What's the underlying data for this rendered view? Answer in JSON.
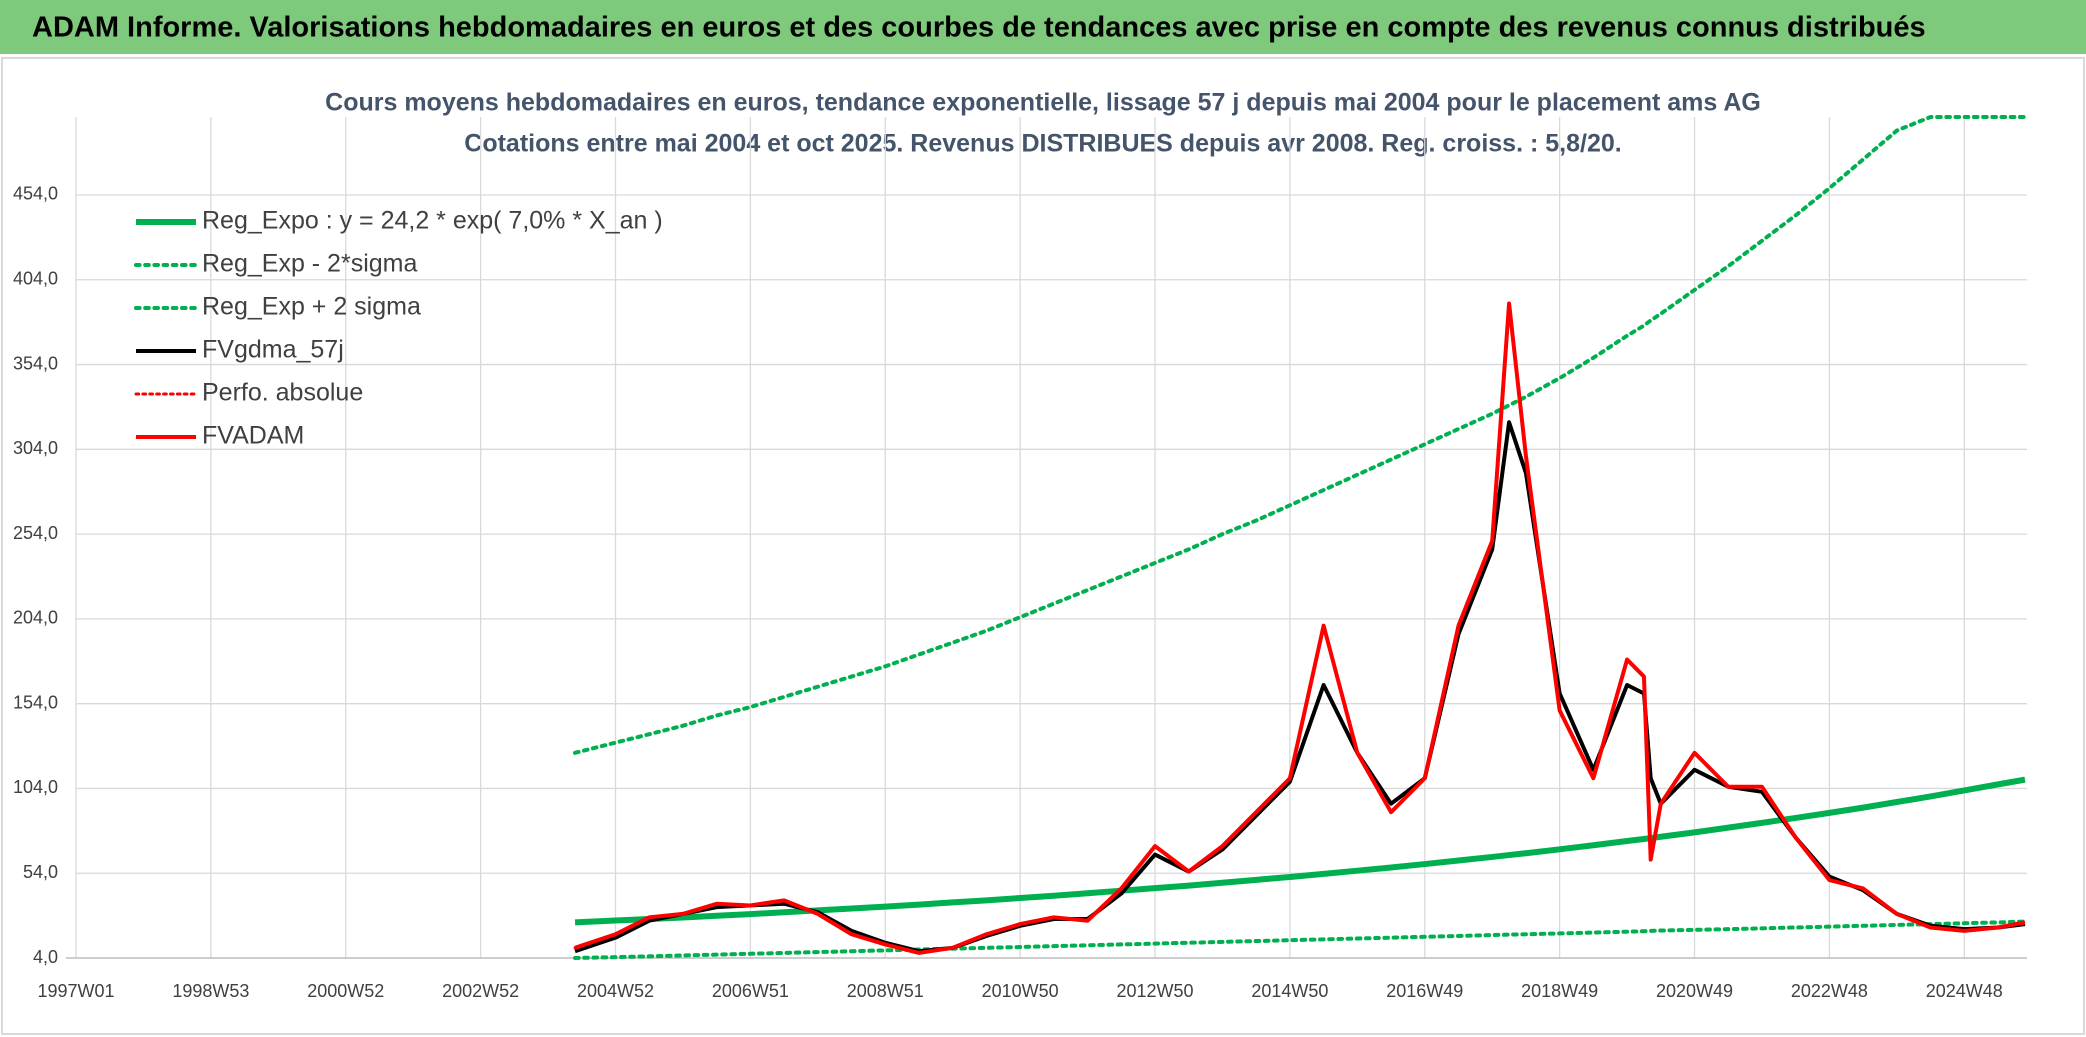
{
  "chart_data": {
    "type": "line",
    "header": "ADAM Informe. Valorisations hebdomadaires en euros et des courbes de tendances avec prise en compte des revenus connus distribués",
    "title": "Cours moyens hebdomadaires en euros, tendance exponentielle, lissage 57 j depuis mai 2004 pour le placement ams AG",
    "subtitle": "Cotations entre mai 2004 et oct 2025. Revenus DISTRIBUES depuis avr 2008. Reg. croiss. : 5,8/20.",
    "x": [
      2004.4,
      2005,
      2005.5,
      2006,
      2006.5,
      2007,
      2007.5,
      2008,
      2008.5,
      2009,
      2009.5,
      2010,
      2010.5,
      2011,
      2011.5,
      2012,
      2012.5,
      2013,
      2013.5,
      2014,
      2014.5,
      2015,
      2015.5,
      2016,
      2016.5,
      2017,
      2017.5,
      2018,
      2018.25,
      2018.5,
      2019,
      2019.5,
      2020,
      2020.25,
      2020.35,
      2020.5,
      2021,
      2021.5,
      2022,
      2022.5,
      2023,
      2023.5,
      2024,
      2024.5,
      2025,
      2025.5,
      2025.9
    ],
    "xlim": [
      1997,
      2025.93
    ],
    "xticks": [
      {
        "value": 1997,
        "label": "1997W01"
      },
      {
        "value": 1999,
        "label": "1998W53"
      },
      {
        "value": 2001,
        "label": "2000W52"
      },
      {
        "value": 2003,
        "label": "2002W52"
      },
      {
        "value": 2005,
        "label": "2004W52"
      },
      {
        "value": 2007,
        "label": "2006W51"
      },
      {
        "value": 2009,
        "label": "2008W51"
      },
      {
        "value": 2011,
        "label": "2010W50"
      },
      {
        "value": 2013,
        "label": "2012W50"
      },
      {
        "value": 2015,
        "label": "2014W50"
      },
      {
        "value": 2017,
        "label": "2016W49"
      },
      {
        "value": 2019,
        "label": "2018W49"
      },
      {
        "value": 2021,
        "label": "2020W49"
      },
      {
        "value": 2023,
        "label": "2022W48"
      },
      {
        "value": 2025,
        "label": "2024W48"
      }
    ],
    "ylim": [
      4,
      500
    ],
    "yticks": [
      {
        "value": 4,
        "label": "4,0"
      },
      {
        "value": 54,
        "label": "54,0"
      },
      {
        "value": 104,
        "label": "104,0"
      },
      {
        "value": 154,
        "label": "154,0"
      },
      {
        "value": 204,
        "label": "204,0"
      },
      {
        "value": 254,
        "label": "254,0"
      },
      {
        "value": 304,
        "label": "304,0"
      },
      {
        "value": 354,
        "label": "354,0"
      },
      {
        "value": 404,
        "label": "404,0"
      },
      {
        "value": 454,
        "label": "454,0"
      }
    ],
    "grid": true,
    "legend": "upper left",
    "series": [
      {
        "name": "Reg_Expo : y = 24,2 * exp( 7,0% *  X_an )",
        "color": "#00b050",
        "style": "solid",
        "width": 6,
        "values": [
          25,
          26.1,
          27,
          27.9,
          28.9,
          29.9,
          31,
          32.1,
          33.2,
          34.3,
          35.5,
          36.8,
          38,
          39.4,
          40.7,
          42.2,
          43.7,
          45.2,
          46.7,
          48.4,
          50.1,
          51.8,
          53.6,
          55.5,
          57.4,
          59.4,
          61.5,
          63.6,
          64.7,
          65.8,
          68.1,
          70.5,
          73,
          74.2,
          74.7,
          75.5,
          78.1,
          80.9,
          83.7,
          86.6,
          89.6,
          92.7,
          96,
          99.3,
          102.8,
          106.4,
          109.2
        ]
      },
      {
        "name": "Reg_Exp - 2*sigma",
        "color": "#00b050",
        "style": "dotted",
        "width": 4,
        "values": [
          4,
          4.5,
          5,
          5.5,
          6,
          6.5,
          7,
          7.5,
          8,
          8.5,
          9,
          9.5,
          10,
          10.5,
          11,
          11.5,
          12,
          12.5,
          13,
          13.5,
          14,
          14.5,
          15,
          15.5,
          16,
          16.5,
          17,
          17.5,
          17.8,
          18,
          18.5,
          19,
          19.5,
          19.8,
          20,
          20.2,
          20.6,
          21,
          21.5,
          22,
          22.5,
          23,
          23.5,
          24,
          24.5,
          25,
          25.5
        ]
      },
      {
        "name": "Reg_Exp + 2 sigma",
        "color": "#00b050",
        "style": "dotted",
        "width": 4,
        "values": [
          125,
          131,
          136,
          141,
          147,
          152,
          158,
          164,
          170,
          176,
          183,
          190,
          197,
          205,
          213,
          221,
          229,
          237,
          245,
          254,
          262,
          271,
          280,
          289,
          298,
          307,
          316,
          325,
          330,
          335,
          346,
          358,
          371,
          377,
          380,
          384,
          398,
          412,
          427,
          442,
          458,
          475,
          492,
          500,
          500,
          500,
          500
        ]
      },
      {
        "name": "FVgdma_57j",
        "color": "#000000",
        "style": "solid",
        "width": 4,
        "values": [
          8,
          16,
          26,
          30,
          34,
          35,
          36,
          31,
          20,
          13,
          8,
          10,
          17,
          23,
          27,
          27,
          42,
          65,
          55,
          68,
          88,
          108,
          165,
          125,
          95,
          110,
          195,
          245,
          320,
          290,
          160,
          115,
          165,
          160,
          110,
          95,
          115,
          105,
          102,
          75,
          52,
          44,
          30,
          23,
          21,
          22,
          24
        ]
      },
      {
        "name": "Perfo. absolue",
        "color": "#ff0000",
        "style": "dotted",
        "width": 3,
        "values": [
          10,
          18,
          28,
          30,
          36,
          35,
          38,
          30,
          18,
          12,
          7,
          10,
          18,
          24,
          28,
          26,
          45,
          70,
          55,
          70,
          90,
          110,
          200,
          125,
          90,
          110,
          200,
          250,
          390,
          300,
          150,
          110,
          180,
          170,
          62,
          95,
          125,
          105,
          105,
          75,
          50,
          45,
          30,
          22,
          20,
          22,
          25
        ]
      },
      {
        "name": "FVADAM",
        "color": "#ff0000",
        "style": "solid",
        "width": 4,
        "values": [
          10,
          18,
          28,
          30,
          36,
          35,
          38,
          30,
          18,
          12,
          7,
          10,
          18,
          24,
          28,
          26,
          45,
          70,
          55,
          70,
          90,
          110,
          200,
          125,
          90,
          110,
          200,
          250,
          390,
          300,
          150,
          110,
          180,
          170,
          62,
          95,
          125,
          105,
          105,
          75,
          50,
          45,
          30,
          22,
          20,
          22,
          25
        ]
      }
    ]
  }
}
